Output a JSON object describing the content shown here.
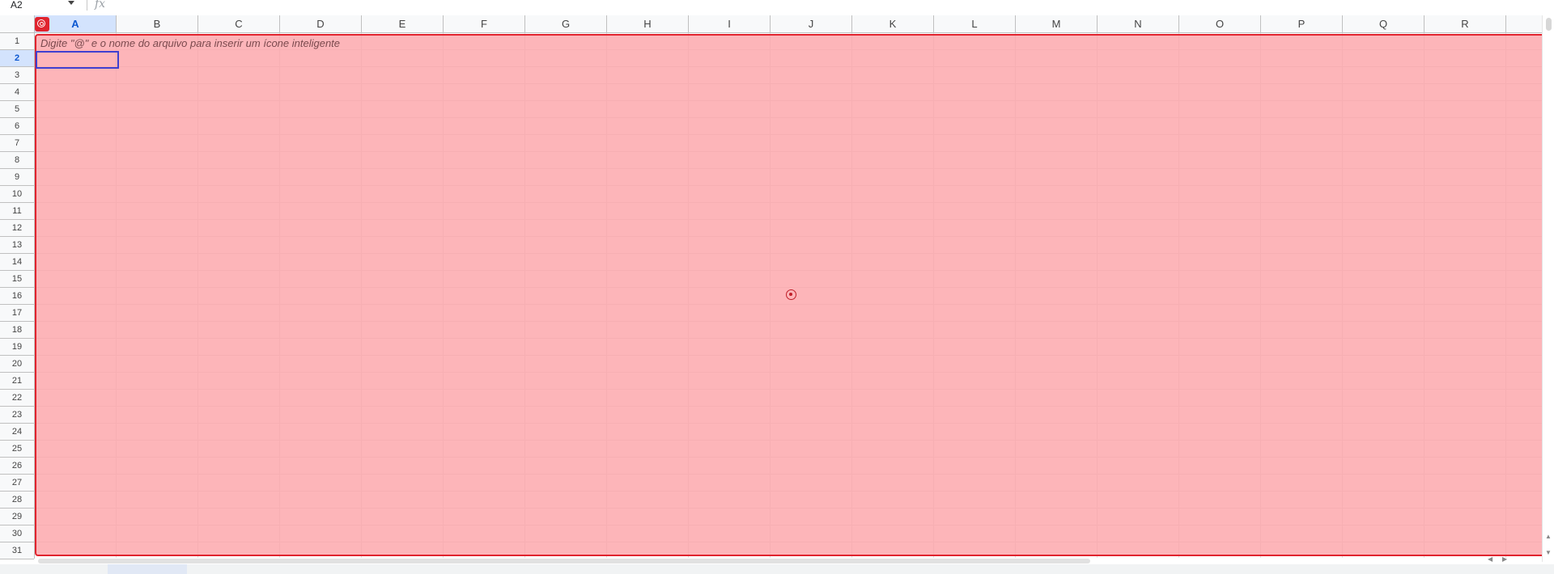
{
  "formula_bar": {
    "name_box": "A2",
    "fx_label": "fx",
    "formula_value": ""
  },
  "columns": [
    "A",
    "B",
    "C",
    "D",
    "E",
    "F",
    "G",
    "H",
    "I",
    "J",
    "K",
    "L",
    "M",
    "N",
    "O",
    "P",
    "Q",
    "R"
  ],
  "active_column": "A",
  "rows": [
    "1",
    "2",
    "3",
    "4",
    "5",
    "6",
    "7",
    "8",
    "9",
    "10",
    "11",
    "12",
    "13",
    "14",
    "15",
    "16",
    "17",
    "18",
    "19",
    "20",
    "21",
    "22",
    "23",
    "24",
    "25",
    "26",
    "27",
    "28",
    "29",
    "30",
    "31"
  ],
  "active_row": "2",
  "table": {
    "placeholder_hint": "Digite \"@\" e o nome do arquivo para inserir um ícone inteligente",
    "overlay_color": "#fca0a5",
    "border_color": "#e0242e"
  },
  "selection": {
    "cell": "A2",
    "border_color": "#3f3fd0"
  },
  "icons": {
    "table_badge": "table-target-icon",
    "center_marker": "crosshair-target-icon",
    "name_box_dropdown": "chevron-down-icon"
  },
  "scroll": {
    "up_glyph": "▲",
    "down_glyph": "▼",
    "left_glyph": "◀",
    "right_glyph": "▶"
  }
}
